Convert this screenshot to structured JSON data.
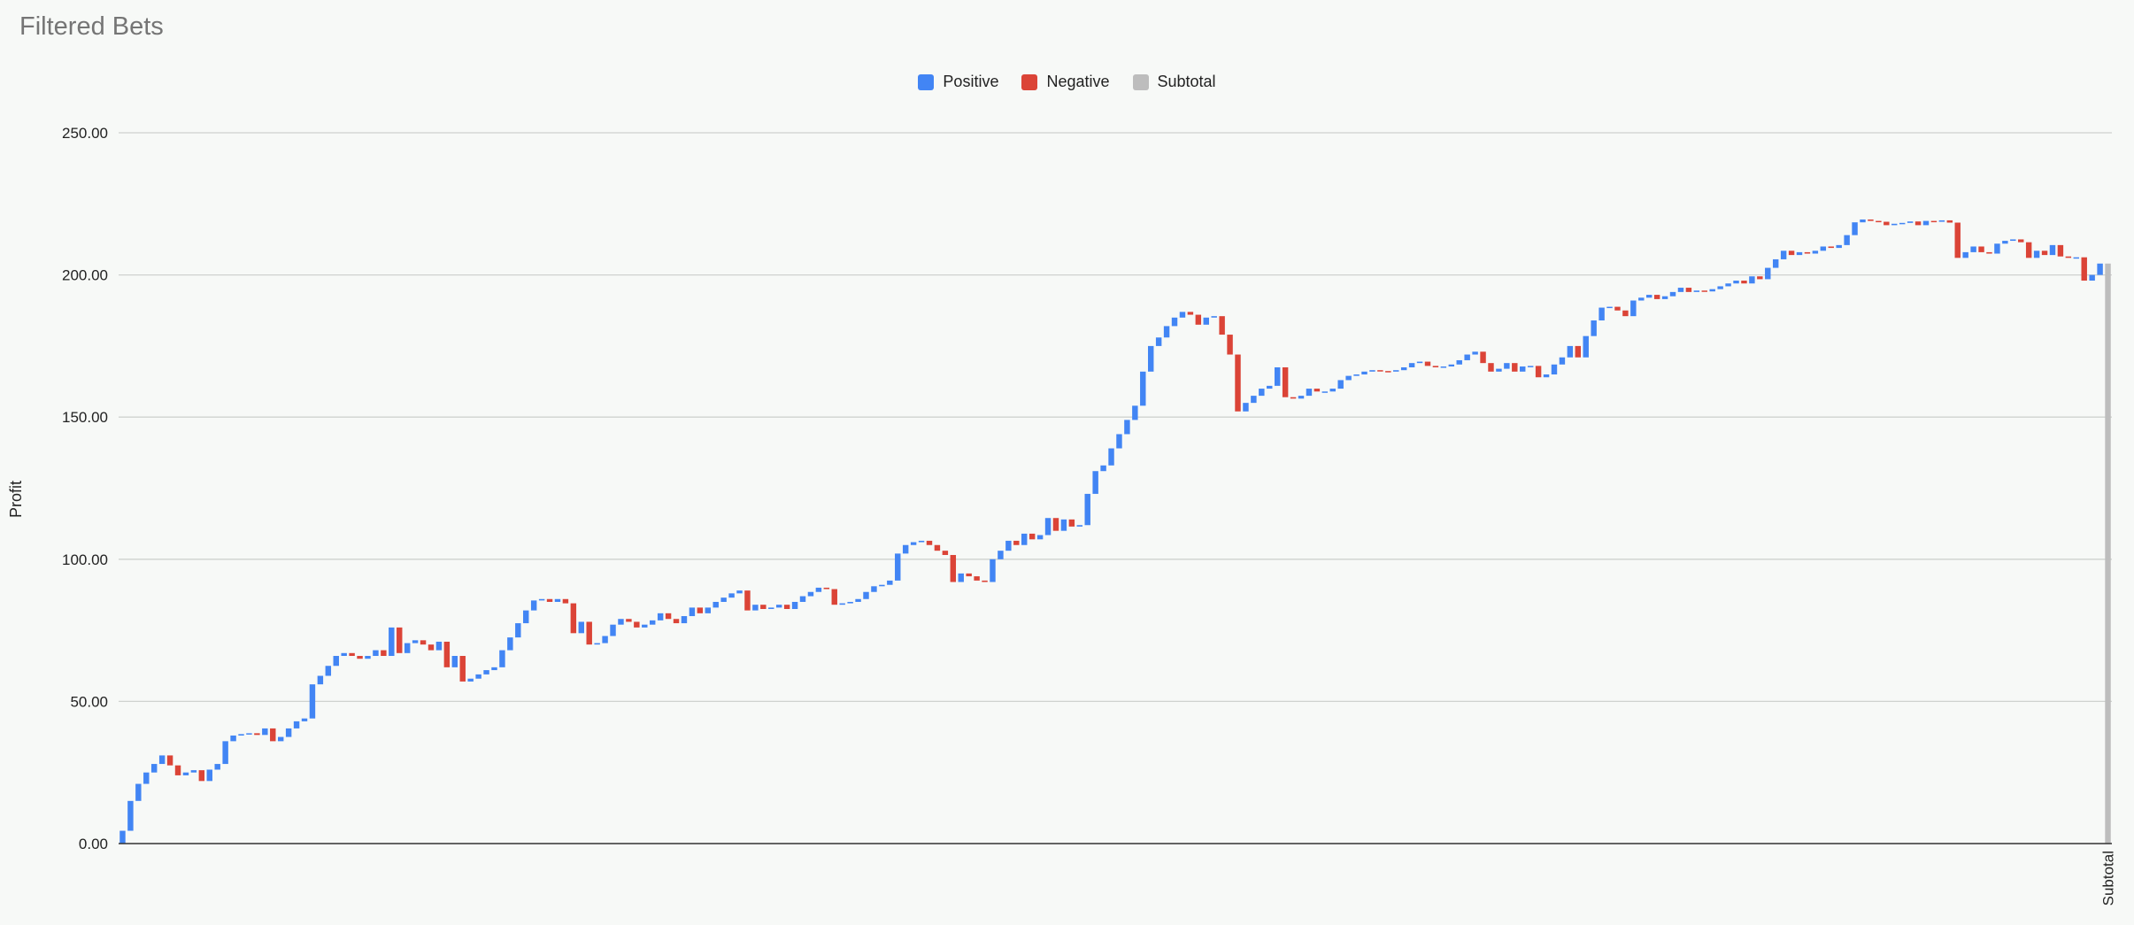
{
  "chart_data": {
    "type": "waterfall",
    "title": "Filtered Bets",
    "ylabel": "Profit",
    "xlabel": "",
    "ylim": [
      0,
      250
    ],
    "yticks": [
      0,
      50,
      100,
      150,
      200,
      250
    ],
    "ytick_labels": [
      "0.00",
      "50.00",
      "100.00",
      "150.00",
      "200.00",
      "250.00"
    ],
    "legend": {
      "placement": "top-center",
      "entries": [
        {
          "name": "Positive",
          "color": "#4285f4"
        },
        {
          "name": "Negative",
          "color": "#db4437"
        },
        {
          "name": "Subtotal",
          "color": "#bdbdbd"
        }
      ]
    },
    "subtotal": {
      "label": "Subtotal",
      "value": 204
    },
    "cumulative": [
      0,
      4.5,
      15,
      21,
      25,
      28,
      31,
      27.5,
      24,
      25,
      25.8,
      22,
      26,
      28,
      36,
      38,
      38.5,
      38.8,
      38.2,
      40.5,
      36,
      37.5,
      40.5,
      43,
      44,
      56,
      59,
      62.5,
      66,
      67,
      66,
      65,
      66,
      68,
      66,
      76,
      67,
      70.5,
      71.5,
      70,
      68,
      71,
      62,
      66,
      57,
      58,
      59.5,
      61,
      62,
      68,
      72.5,
      77.5,
      82,
      85.5,
      86,
      85,
      86,
      84.5,
      74,
      78,
      70,
      70.5,
      73,
      77,
      79,
      78,
      76,
      77,
      78.5,
      81,
      79,
      77.5,
      80,
      83,
      81,
      83,
      85,
      86.5,
      88,
      89,
      82,
      84,
      82.5,
      83,
      84,
      82.5,
      85,
      87,
      88.5,
      90,
      89.5,
      84,
      84.5,
      85,
      86,
      88.5,
      90.5,
      91,
      92.5,
      102,
      105,
      106,
      106.5,
      105,
      103,
      101.5,
      92,
      95,
      94,
      92.5,
      92,
      100,
      103,
      106.5,
      105,
      109,
      107,
      108.5,
      114.5,
      110,
      114,
      111.5,
      112,
      123,
      131,
      133,
      139,
      144,
      149,
      154,
      166,
      175,
      178,
      182,
      185,
      187,
      186,
      182.5,
      185,
      185.5,
      179,
      172,
      152,
      155,
      157.5,
      160,
      161,
      167.5,
      157,
      156.5,
      157.5,
      160,
      159,
      159,
      160,
      163,
      164.5,
      165,
      166,
      166.5,
      166.2,
      166,
      166.5,
      167.5,
      169,
      169.5,
      168,
      167.5,
      167.8,
      168.5,
      170,
      172,
      173,
      169,
      166,
      167,
      169,
      166,
      167.8,
      168,
      164,
      165,
      168.5,
      171,
      175,
      171,
      178.5,
      184,
      188.5,
      188.8,
      187.5,
      185.5,
      191,
      192,
      193,
      191.5,
      192.5,
      194,
      195.5,
      194,
      194.5,
      194.2,
      195,
      196,
      197,
      198,
      197,
      199.5,
      198.5,
      202.5,
      205.5,
      208.5,
      207,
      208,
      207.5,
      208.5,
      210,
      209.5,
      210.5,
      214,
      218.5,
      219.5,
      219,
      218.7,
      217.5,
      218,
      218.3,
      218.8,
      217.5,
      219,
      218.7,
      219.2,
      218.4,
      206,
      208,
      210,
      208,
      207.5,
      211,
      212,
      212.5,
      211.5,
      206,
      208.5,
      207,
      210.5,
      206.5,
      206,
      206.2,
      198,
      200,
      204
    ]
  }
}
